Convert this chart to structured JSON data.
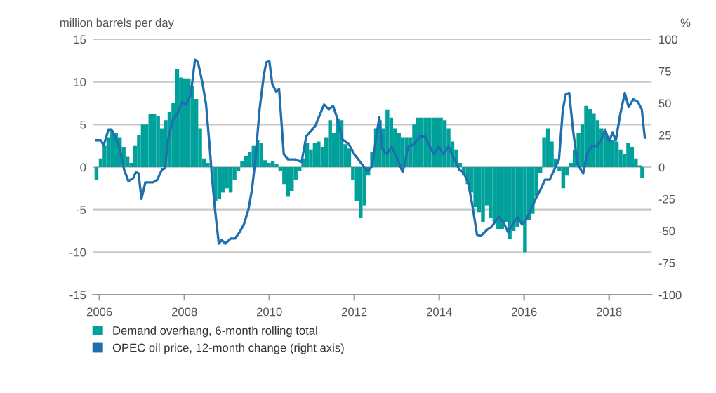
{
  "chart_data": {
    "type": "bar",
    "ylabel": "million barrels per day",
    "y2label": "%",
    "xlim": [
      2005.85,
      2019.0
    ],
    "xticks": [
      2006,
      2008,
      2010,
      2012,
      2014,
      2016,
      2018
    ],
    "ylim": [
      -15,
      15
    ],
    "yticks": [
      -15,
      -10,
      -5,
      0,
      5,
      10,
      15
    ],
    "y2lim": [
      -100,
      100
    ],
    "y2ticks": [
      -100,
      -75,
      -50,
      -25,
      0,
      25,
      50,
      75,
      100
    ],
    "grid": "y",
    "legend": "bottom left",
    "series": [
      {
        "name": "Demand overhang, 6-month rolling total",
        "color": "#00a19a",
        "x": [
          2005.93,
          2006.03,
          2006.12,
          2006.21,
          2006.3,
          2006.39,
          2006.48,
          2006.57,
          2006.66,
          2006.75,
          2006.84,
          2006.93,
          2007.02,
          2007.11,
          2007.2,
          2007.29,
          2007.38,
          2007.47,
          2007.56,
          2007.65,
          2007.74,
          2007.83,
          2007.92,
          2008.01,
          2008.1,
          2008.19,
          2008.28,
          2008.37,
          2008.46,
          2008.55,
          2008.64,
          2008.73,
          2008.82,
          2008.91,
          2009.0,
          2009.09,
          2009.18,
          2009.27,
          2009.36,
          2009.45,
          2009.54,
          2009.63,
          2009.72,
          2009.81,
          2009.9,
          2009.99,
          2010.08,
          2010.17,
          2010.26,
          2010.35,
          2010.44,
          2010.53,
          2010.62,
          2010.71,
          2010.8,
          2010.89,
          2010.98,
          2011.07,
          2011.16,
          2011.25,
          2011.34,
          2011.43,
          2011.52,
          2011.61,
          2011.7,
          2011.79,
          2011.88,
          2011.97,
          2012.06,
          2012.15,
          2012.24,
          2012.33,
          2012.42,
          2012.51,
          2012.6,
          2012.69,
          2012.78,
          2012.87,
          2012.96,
          2013.05,
          2013.14,
          2013.23,
          2013.32,
          2013.41,
          2013.5,
          2013.59,
          2013.68,
          2013.77,
          2013.86,
          2013.95,
          2014.04,
          2014.13,
          2014.22,
          2014.31,
          2014.4,
          2014.49,
          2014.58,
          2014.67,
          2014.76,
          2014.85,
          2014.94,
          2015.03,
          2015.12,
          2015.21,
          2015.3,
          2015.39,
          2015.48,
          2015.57,
          2015.66,
          2015.75,
          2015.84,
          2015.93,
          2016.02,
          2016.11,
          2016.2,
          2016.29,
          2016.38,
          2016.47,
          2016.56,
          2016.65,
          2016.74,
          2016.83,
          2016.92,
          2017.01,
          2017.1,
          2017.19,
          2017.28,
          2017.37,
          2017.46,
          2017.55,
          2017.64,
          2017.73,
          2017.82,
          2017.91,
          2018.0,
          2018.09,
          2018.18,
          2018.27,
          2018.36,
          2018.45,
          2018.54,
          2018.63,
          2018.72,
          2018.78
        ],
        "values": [
          -1.5,
          1,
          2.5,
          3.5,
          4.3,
          4,
          3.5,
          2.3,
          1.2,
          0.5,
          2.5,
          3.7,
          5,
          5,
          6.2,
          6.2,
          6,
          4.5,
          5.5,
          6.5,
          7.5,
          11.5,
          10.5,
          10.4,
          10.4,
          9.5,
          8,
          4.5,
          1,
          0.5,
          null,
          -4,
          -3.8,
          -3,
          -2.5,
          -3,
          -1.5,
          -0.5,
          0.7,
          1.3,
          1.8,
          2.5,
          3.2,
          2.8,
          0.8,
          0.5,
          0.7,
          0.4,
          -0.5,
          -2,
          -3.5,
          -2.8,
          -1.5,
          -0.5,
          1,
          2.8,
          2,
          2.8,
          3,
          2.3,
          3.5,
          5.5,
          4,
          5.7,
          5.5,
          2.7,
          2.2,
          -1.5,
          -4,
          -6,
          -4.5,
          -1,
          1.8,
          4.5,
          5.5,
          4.5,
          6.7,
          5.8,
          4.5,
          4,
          3.5,
          3.5,
          3.5,
          5,
          5.8,
          5.8,
          5.8,
          5.8,
          5.8,
          5.8,
          5.8,
          5.5,
          4.5,
          3,
          2,
          0.5,
          -1,
          -2,
          -3,
          -4.7,
          -5.3,
          -6.5,
          -4.5,
          -6,
          -6.5,
          -7.3,
          -7.3,
          -6.5,
          -8.5,
          -7.5,
          -7,
          -6.5,
          -10,
          -6.2,
          -5.5,
          -3.5,
          -0.7,
          3.5,
          4.5,
          3,
          1,
          -0.5,
          -2.5,
          -1,
          0.5,
          2,
          4,
          5,
          7.2,
          6.8,
          6.3,
          5.5,
          4.5,
          4.2,
          3.5,
          3.2,
          3,
          2,
          1.5,
          2.8,
          2.3,
          1,
          0.2,
          -1.3
        ]
      },
      {
        "name": "OPEC oil price, 12-month change (right axis)",
        "type": "line",
        "axis": "y2",
        "color": "#1f6fae",
        "x": [
          2005.93,
          2006.03,
          2006.1,
          2006.21,
          2006.29,
          2006.37,
          2006.47,
          2006.58,
          2006.68,
          2006.79,
          2006.86,
          2006.92,
          2006.99,
          2007.08,
          2007.15,
          2007.26,
          2007.36,
          2007.47,
          2007.54,
          2007.62,
          2007.73,
          2007.83,
          2007.94,
          2008.04,
          2008.15,
          2008.25,
          2008.32,
          2008.43,
          2008.51,
          2008.59,
          2008.65,
          2008.72,
          2008.81,
          2008.88,
          2008.96,
          2009.09,
          2009.19,
          2009.3,
          2009.4,
          2009.51,
          2009.59,
          2009.66,
          2009.77,
          2009.87,
          2009.93,
          2010.0,
          2010.07,
          2010.16,
          2010.23,
          2010.34,
          2010.44,
          2010.6,
          2010.76,
          2010.87,
          2010.97,
          2011.08,
          2011.19,
          2011.29,
          2011.4,
          2011.5,
          2011.61,
          2011.71,
          2011.87,
          2012.0,
          2012.14,
          2012.3,
          2012.42,
          2012.51,
          2012.59,
          2012.66,
          2012.77,
          2012.88,
          2013.02,
          2013.14,
          2013.27,
          2013.41,
          2013.55,
          2013.67,
          2013.78,
          2013.88,
          2013.99,
          2014.1,
          2014.22,
          2014.33,
          2014.47,
          2014.57,
          2014.68,
          2014.78,
          2014.89,
          2014.98,
          2015.13,
          2015.23,
          2015.4,
          2015.51,
          2015.62,
          2015.73,
          2015.84,
          2015.95,
          2016.05,
          2016.16,
          2016.27,
          2016.38,
          2016.49,
          2016.6,
          2016.71,
          2016.82,
          2016.91,
          2016.98,
          2017.06,
          2017.15,
          2017.26,
          2017.39,
          2017.48,
          2017.58,
          2017.69,
          2017.8,
          2017.91,
          2018.0,
          2018.08,
          2018.16,
          2018.26,
          2018.37,
          2018.46,
          2018.57,
          2018.68,
          2018.77,
          2018.84
        ],
        "values": [
          21,
          21,
          17,
          29,
          29,
          23,
          16,
          -2,
          -11,
          -9,
          -4,
          -5,
          -25,
          -12,
          -12,
          -12,
          -10,
          -2,
          -1,
          22,
          37,
          41,
          51,
          49,
          57,
          84,
          82,
          65,
          49,
          18,
          -8,
          -33,
          -60,
          -57,
          -60,
          -56,
          -56,
          -51,
          -45,
          -33,
          -18,
          2,
          45,
          72,
          82,
          83,
          65,
          59,
          61,
          10,
          6,
          6,
          4,
          24,
          28,
          32,
          41,
          49,
          45,
          48,
          37,
          22,
          18,
          10,
          4,
          -3,
          0,
          22,
          39,
          14,
          10,
          16,
          6,
          -4,
          16,
          18,
          24,
          24,
          16,
          10,
          16,
          10,
          16,
          8,
          -2,
          -4,
          -12,
          -30,
          -53,
          -54,
          -49,
          -47,
          -39,
          -43,
          -51,
          -45,
          -39,
          -45,
          -41,
          -33,
          -25,
          -18,
          -10,
          -10,
          -2,
          6,
          45,
          57,
          58,
          29,
          2,
          -5,
          10,
          16,
          16,
          20,
          29,
          20,
          27,
          21,
          41,
          58,
          47,
          53,
          51,
          45,
          23
        ]
      }
    ]
  }
}
